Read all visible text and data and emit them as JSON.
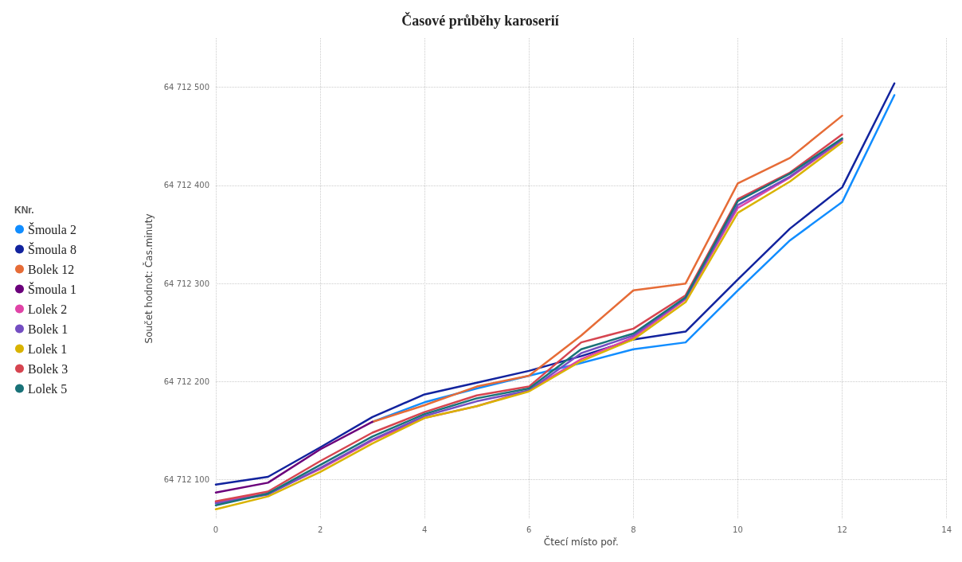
{
  "chart_data": {
    "type": "line",
    "title": "Časové průběhy karoserií",
    "xlabel": "Čtecí místo poř.",
    "ylabel": "Součet hodnot: Čas.minuty",
    "legend_title": "KNr.",
    "legend": "left",
    "grid": true,
    "line_style": "solid",
    "marker": "none",
    "x": [
      0,
      1,
      2,
      3,
      4,
      5,
      6,
      7,
      8,
      9,
      10,
      11,
      12,
      13
    ],
    "xlim": [
      0,
      14
    ],
    "xticks": [
      0,
      2,
      4,
      6,
      8,
      10,
      12,
      14
    ],
    "ylim": [
      64712060,
      64712550
    ],
    "yticks": [
      {
        "value": 64712100,
        "label": "64 712 100"
      },
      {
        "value": 64712200,
        "label": "64 712 200"
      },
      {
        "value": 64712300,
        "label": "64 712 300"
      },
      {
        "value": 64712400,
        "label": "64 712 400"
      },
      {
        "value": 64712500,
        "label": "64 712 500"
      }
    ],
    "series": [
      {
        "name": "Šmoula 2",
        "color": "#118dff",
        "values": [
          null,
          null,
          null,
          64712159,
          64712179,
          64712193,
          64712206,
          64712219,
          64712233,
          64712240,
          64712293,
          64712344,
          64712383,
          64712492
        ]
      },
      {
        "name": "Šmoula 8",
        "color": "#12239e",
        "values": [
          64712095,
          64712103,
          64712133,
          64712164,
          64712187,
          64712199,
          64712211,
          64712226,
          64712243,
          64712251,
          64712304,
          64712356,
          64712398,
          64712504
        ]
      },
      {
        "name": "Bolek 12",
        "color": "#e66c37",
        "values": [
          null,
          null,
          null,
          64712159,
          64712176,
          64712195,
          64712206,
          64712247,
          64712293,
          64712300,
          64712402,
          64712428,
          64712471,
          null
        ]
      },
      {
        "name": "Šmoula 1",
        "color": "#6b007b",
        "values": [
          64712087,
          64712097,
          64712131,
          64712159,
          null,
          null,
          null,
          null,
          null,
          null,
          null,
          null,
          null,
          null
        ]
      },
      {
        "name": "Lolek 2",
        "color": "#e044a7",
        "values": [
          64712077,
          64712086,
          64712111,
          64712140,
          64712163,
          64712175,
          64712191,
          64712223,
          64712245,
          64712284,
          64712377,
          64712408,
          64712446,
          null
        ]
      },
      {
        "name": "Bolek 1",
        "color": "#744ec2",
        "values": [
          64712076,
          64712085,
          64712112,
          64712141,
          64712165,
          64712180,
          64712191,
          64712229,
          64712247,
          64712285,
          64712380,
          64712409,
          64712447,
          null
        ]
      },
      {
        "name": "Lolek 1",
        "color": "#d9b300",
        "values": [
          64712070,
          64712083,
          64712108,
          64712137,
          64712163,
          64712175,
          64712190,
          64712221,
          64712243,
          64712281,
          64712372,
          64712404,
          64712444,
          null
        ]
      },
      {
        "name": "Bolek 3",
        "color": "#d64550",
        "values": [
          64712078,
          64712088,
          64712119,
          64712148,
          64712169,
          64712186,
          64712195,
          64712240,
          64712254,
          64712288,
          64712386,
          64712413,
          64712452,
          null
        ]
      },
      {
        "name": "Lolek 5",
        "color": "#197278",
        "values": [
          64712074,
          64712086,
          64712115,
          64712144,
          64712167,
          64712183,
          64712193,
          64712233,
          64712249,
          64712286,
          64712384,
          64712412,
          64712448,
          null
        ]
      }
    ]
  }
}
